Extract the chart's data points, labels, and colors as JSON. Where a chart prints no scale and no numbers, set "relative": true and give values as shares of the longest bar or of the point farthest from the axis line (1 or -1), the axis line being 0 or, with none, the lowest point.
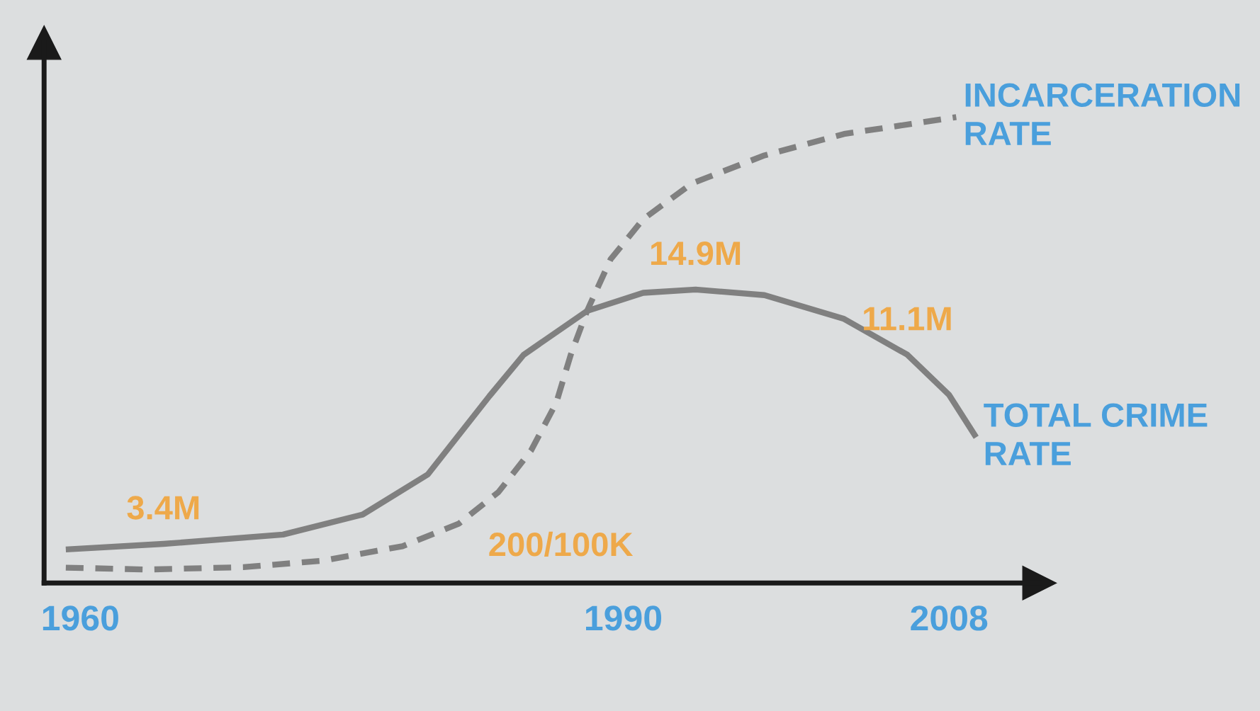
{
  "chart_data": {
    "type": "line",
    "relative": true,
    "legend": false,
    "grid": false,
    "xlim": [
      1958,
      2013
    ],
    "xticks": [
      1960,
      1990,
      2008
    ],
    "series": [
      {
        "name": "INCARCERATION\nRATE",
        "color": "#808080",
        "line_style": "dashed",
        "x": [
          1959.2,
          1963.7,
          1969.0,
          1973.4,
          1977.8,
          1980.9,
          1983.1,
          1984.9,
          1986.3,
          1987.1,
          1988.0,
          1989.3,
          1991.1,
          1993.8,
          1997.8,
          2002.2,
          2008.4
        ],
        "values": [
          0.033,
          0.029,
          0.034,
          0.048,
          0.079,
          0.127,
          0.195,
          0.284,
          0.387,
          0.49,
          0.584,
          0.695,
          0.781,
          0.858,
          0.918,
          0.964,
          1.0
        ]
      },
      {
        "name": "TOTAL CRIME\nRATE",
        "color": "#808080",
        "line_style": "solid",
        "x": [
          1959.2,
          1964.6,
          1971.2,
          1975.6,
          1979.2,
          1982.6,
          1984.5,
          1988.0,
          1991.1,
          1994.0,
          1997.8,
          2002.2,
          2005.7,
          2008.0,
          2009.5
        ],
        "values": [
          0.072,
          0.084,
          0.104,
          0.147,
          0.233,
          0.401,
          0.49,
          0.584,
          0.623,
          0.63,
          0.618,
          0.567,
          0.49,
          0.404,
          0.313
        ]
      }
    ],
    "annotations": [
      {
        "text": "3.4M",
        "x": 1964.6,
        "y": 0.084
      },
      {
        "text": "14.9M",
        "x": 1994.0,
        "y": 0.63
      },
      {
        "text": "11.1M",
        "x": 2005.7,
        "y": 0.49
      },
      {
        "text": "200/100K",
        "x": 1980.9,
        "y": 0.127
      }
    ]
  }
}
